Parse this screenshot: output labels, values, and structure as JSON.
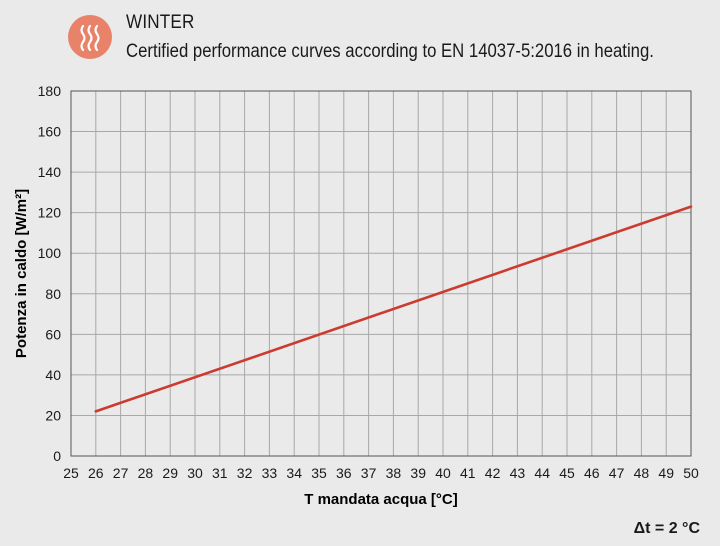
{
  "header": {
    "badge_icon": "heat-waves-icon",
    "title": "WINTER",
    "subtitle": "Certified performance curves according to EN 14037-5:2016 in heating."
  },
  "footer": {
    "note": "Δt = 2 °C"
  },
  "colors": {
    "line": "#cc3b2f",
    "badge": "#e8836a",
    "grid": "#a8a8a8"
  },
  "chart_data": {
    "type": "line",
    "title": "",
    "xlabel": "T mandata acqua [°C]",
    "ylabel": "Potenza in caldo [W/m²]",
    "xlim": [
      25,
      50
    ],
    "ylim": [
      0,
      180
    ],
    "xticks": [
      25,
      26,
      27,
      28,
      29,
      30,
      31,
      32,
      33,
      34,
      35,
      36,
      37,
      38,
      39,
      40,
      41,
      42,
      43,
      44,
      45,
      46,
      47,
      48,
      49,
      50
    ],
    "yticks": [
      0,
      20,
      40,
      60,
      80,
      100,
      120,
      140,
      160,
      180
    ],
    "grid": true,
    "series": [
      {
        "x": [
          26,
          50
        ],
        "y": [
          22,
          123
        ]
      }
    ]
  }
}
